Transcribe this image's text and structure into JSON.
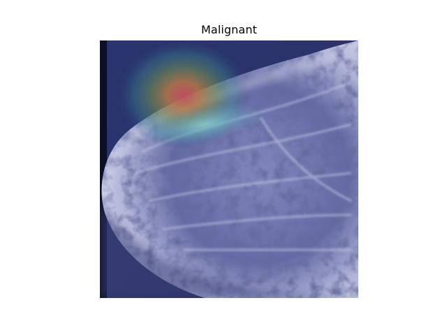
{
  "figure": {
    "title": "Malignant"
  },
  "image": {
    "kind": "mammogram-with-heatmap-overlay",
    "colors": {
      "background": "#1f2452",
      "tissue_light": "#c9cde8",
      "tissue_dark": "#242a55",
      "heat_hot": "#d24a4f",
      "heat_warm": "#c89a3a",
      "heat_cool": "#4fa8a0",
      "edge_black": "#05081a"
    }
  }
}
